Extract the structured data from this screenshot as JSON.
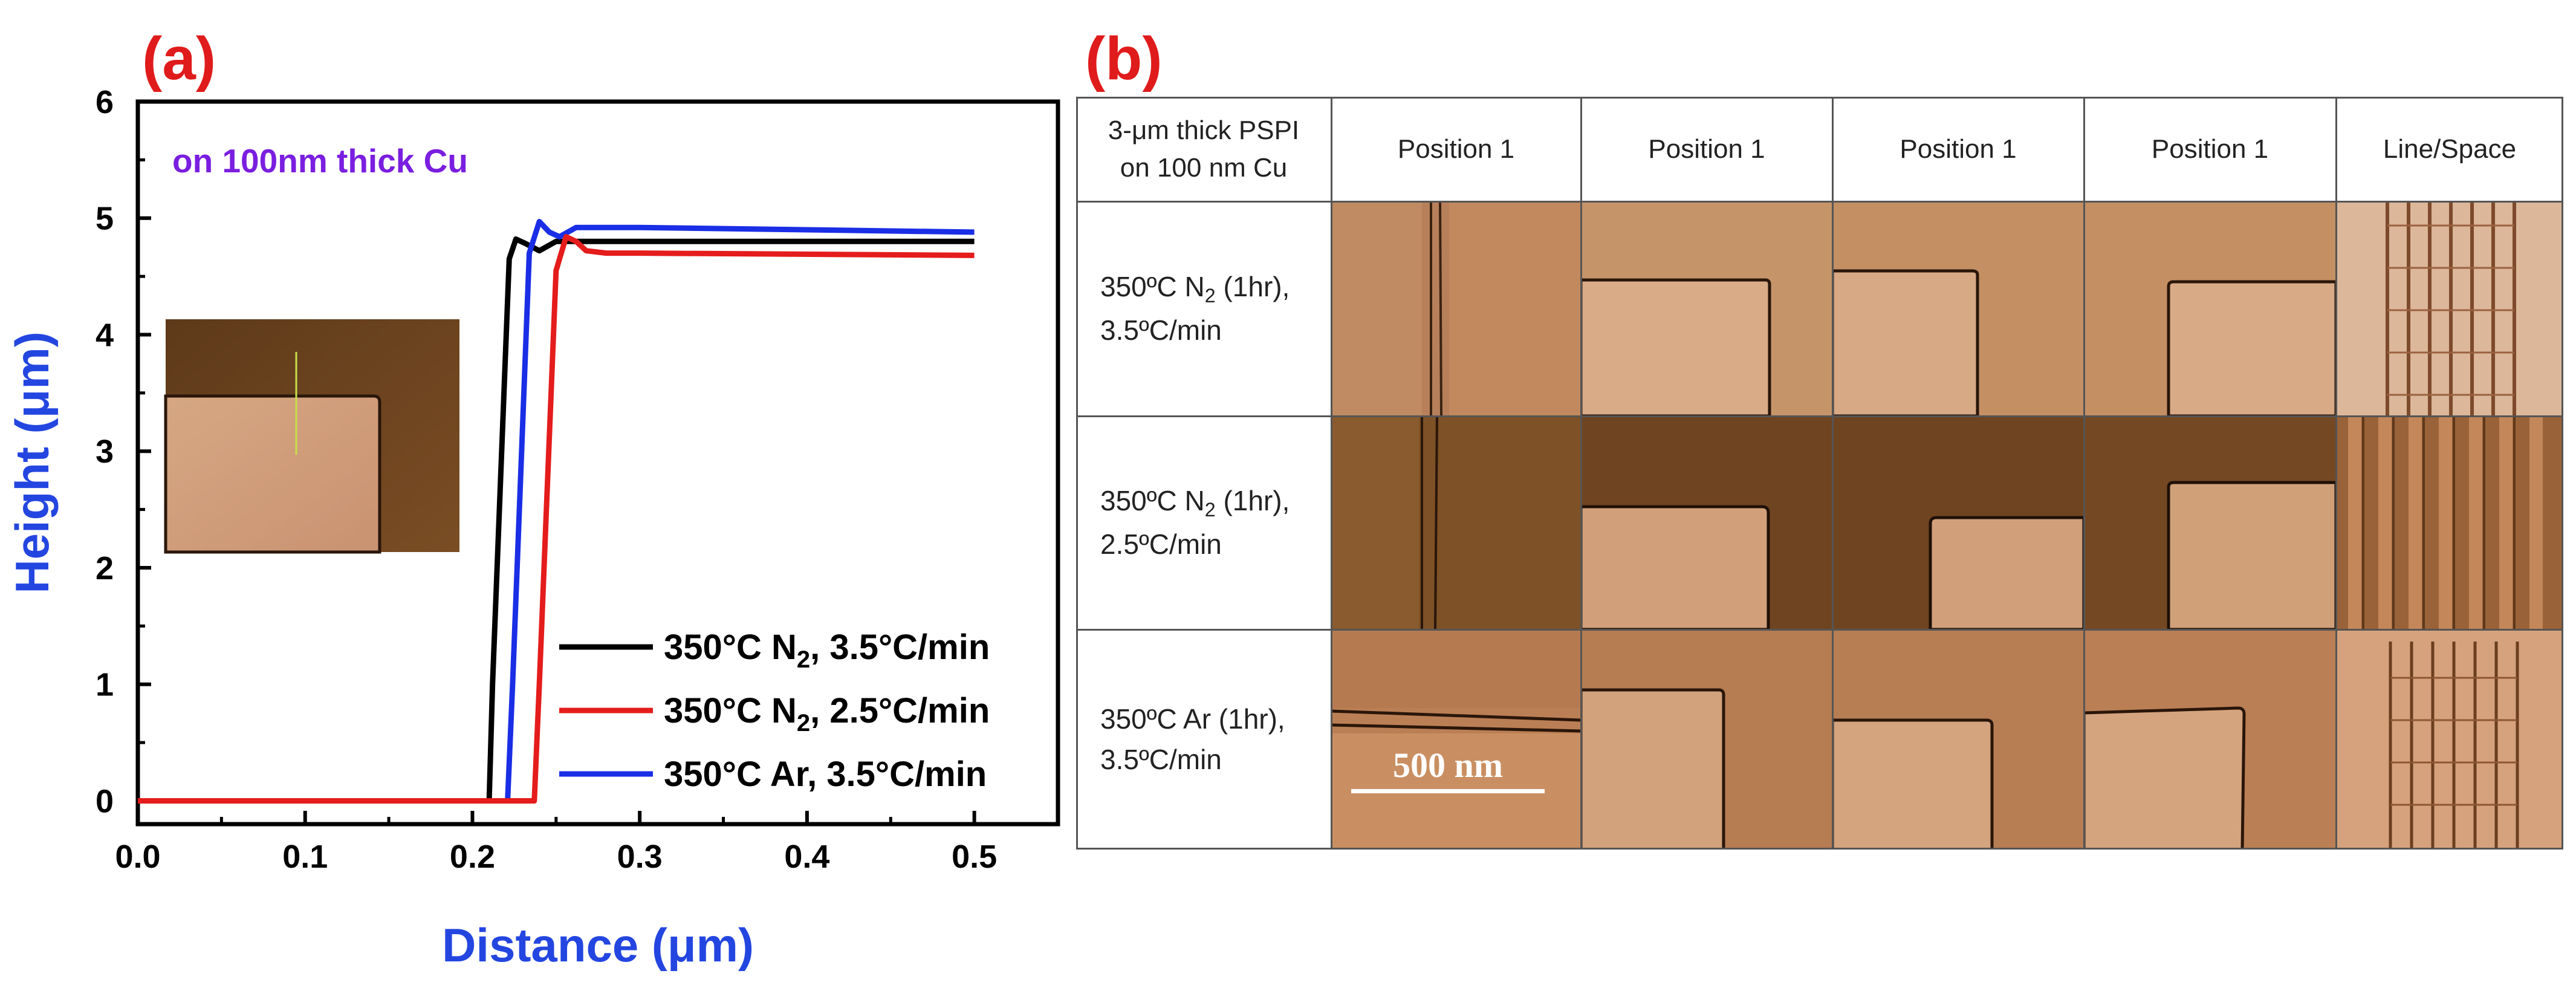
{
  "panel_a": {
    "label": "(a)"
  },
  "panel_b": {
    "label": "(b)"
  },
  "chart_data": {
    "type": "line",
    "title": "",
    "annotation": "on 100nm thick Cu",
    "xlabel": "Distance (μm)",
    "ylabel": "Height (μm)",
    "xlim": [
      0.0,
      0.55
    ],
    "ylim": [
      -0.2,
      6.0
    ],
    "xticks": [
      "0.0",
      "0.1",
      "0.2",
      "0.3",
      "0.4",
      "0.5"
    ],
    "yticks": [
      "0",
      "1",
      "2",
      "3",
      "4",
      "5",
      "6"
    ],
    "grid": false,
    "legend_position": "bottom-right",
    "series": [
      {
        "name": "350°C N₂, 3.5°C/min",
        "color": "#000000",
        "x": [
          0.0,
          0.21,
          0.212,
          0.222,
          0.226,
          0.232,
          0.24,
          0.25,
          0.3,
          0.5
        ],
        "y": [
          0.0,
          0.0,
          1.0,
          4.65,
          4.82,
          4.78,
          4.72,
          4.8,
          4.8,
          4.8
        ]
      },
      {
        "name": "350°C N₂, 2.5°C/min",
        "color": "#e51c1c",
        "x": [
          0.0,
          0.237,
          0.24,
          0.25,
          0.256,
          0.262,
          0.268,
          0.28,
          0.3,
          0.5
        ],
        "y": [
          0.0,
          0.0,
          1.0,
          4.55,
          4.84,
          4.8,
          4.72,
          4.7,
          4.7,
          4.68
        ]
      },
      {
        "name": "350°C Ar, 3.5°C/min",
        "color": "#1a2ee6",
        "x": [
          0.0,
          0.221,
          0.224,
          0.234,
          0.24,
          0.246,
          0.252,
          0.262,
          0.3,
          0.5
        ],
        "y": [
          0.0,
          0.0,
          1.0,
          4.7,
          4.97,
          4.88,
          4.84,
          4.92,
          4.92,
          4.88
        ]
      }
    ]
  },
  "legend": [
    {
      "prefix": "350°C N",
      "sub": "2",
      "suffix": ", 3.5°C/min"
    },
    {
      "prefix": "350°C N",
      "sub": "2",
      "suffix": ", 2.5°C/min"
    },
    {
      "prefix": "350°C Ar, 3.5°C/min",
      "sub": "",
      "suffix": ""
    }
  ],
  "table": {
    "corner": [
      "3-μm thick PSPI",
      "on 100 nm Cu"
    ],
    "columns": [
      "Position 1",
      "Position 1",
      "Position 1",
      "Position 1",
      "Line/Space"
    ],
    "rows": [
      {
        "line1_prefix": "350ºC N",
        "line1_sub": "2",
        "line1_suffix": " (1hr),",
        "line2": "3.5ºC/min"
      },
      {
        "line1_prefix": "350ºC N",
        "line1_sub": "2",
        "line1_suffix": " (1hr),",
        "line2": "2.5ºC/min"
      },
      {
        "line1_prefix": "350ºC Ar (1hr),",
        "line1_sub": "",
        "line1_suffix": "",
        "line2": "3.5ºC/min"
      }
    ],
    "scale_bar": "500 nm"
  },
  "colors": {
    "panel_label": "#e01b1b",
    "axis_label": "#2446e0",
    "annotation": "#7a1ee0",
    "copper_dark": "#8a5a2b",
    "copper_light": "#d9a679"
  }
}
